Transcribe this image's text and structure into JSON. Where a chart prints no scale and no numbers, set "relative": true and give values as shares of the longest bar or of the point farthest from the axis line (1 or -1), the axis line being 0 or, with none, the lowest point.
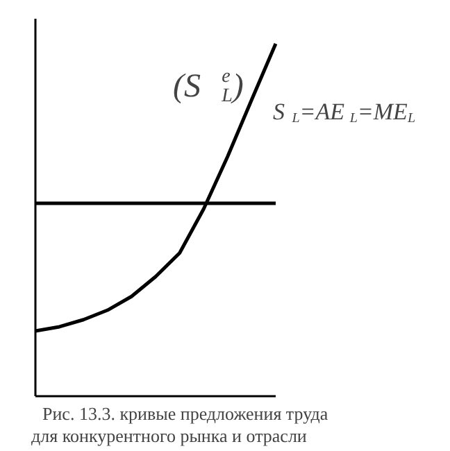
{
  "chart_data": {
    "type": "line",
    "relative": true,
    "categories": [
      null,
      null,
      null,
      null,
      null,
      null,
      null,
      null,
      null,
      null,
      null
    ],
    "series": [
      {
        "color": "#000000",
        "values": [
          0.185,
          0.197,
          0.217,
          0.244,
          0.283,
          0.339,
          0.406,
          0.531,
          0.68,
          0.841,
          1
        ]
      },
      {
        "color": "#000000",
        "values": [
          0.547,
          0.547,
          0.547,
          0.547,
          0.547,
          0.547,
          0.547,
          0.547,
          0.547,
          0.547,
          0.547
        ]
      }
    ],
    "annotations": [
      "(S$_{L}$$^{e}$)",
      "S$_{L}$=AE$_{L}$=ME$_{L}$",
      "Рис. 13.3. кривые предложения труда для конкурентного рынка и отрасли"
    ]
  }
}
